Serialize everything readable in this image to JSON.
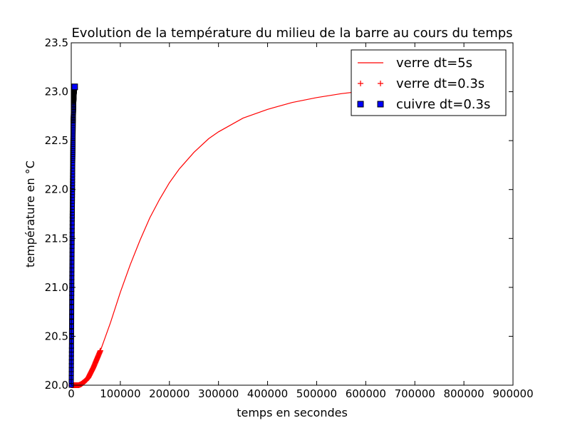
{
  "chart_data": {
    "type": "line",
    "title": "Evolution de la température du milieu de la barre au cours du temps",
    "xlabel": "temps en secondes",
    "ylabel": "température en °C",
    "xlim": [
      0,
      900000
    ],
    "ylim": [
      20.0,
      23.5
    ],
    "x_ticks": [
      "0",
      "100000",
      "200000",
      "300000",
      "400000",
      "500000",
      "600000",
      "700000",
      "800000",
      "900000"
    ],
    "y_ticks": [
      "20.0",
      "20.5",
      "21.0",
      "21.5",
      "22.0",
      "22.5",
      "23.0",
      "23.5"
    ],
    "grid": false,
    "legend_position": "top-right",
    "series": [
      {
        "name": "verre dt=5s",
        "style": "line",
        "color": "#ff0000",
        "x": [
          0,
          10000,
          20000,
          30000,
          40000,
          50000,
          60000,
          70000,
          80000,
          100000,
          120000,
          140000,
          160000,
          180000,
          200000,
          220000,
          250000,
          280000,
          300000,
          350000,
          400000,
          450000,
          500000,
          550000,
          600000,
          650000
        ],
        "y": [
          20.0,
          20.0,
          20.01,
          20.05,
          20.13,
          20.24,
          20.36,
          20.5,
          20.64,
          20.95,
          21.23,
          21.48,
          21.71,
          21.9,
          22.07,
          22.21,
          22.38,
          22.52,
          22.59,
          22.73,
          22.82,
          22.89,
          22.94,
          22.98,
          23.01,
          23.03
        ]
      },
      {
        "name": "verre dt=0.3s",
        "style": "plus",
        "color": "#ff0000",
        "x": [
          0,
          5000,
          10000,
          15000,
          20000,
          25000,
          30000,
          35000,
          40000,
          45000,
          50000,
          55000,
          60000
        ],
        "y": [
          20.0,
          20.0,
          20.0,
          20.0,
          20.01,
          20.03,
          20.05,
          20.08,
          20.13,
          20.18,
          20.24,
          20.3,
          20.36
        ]
      },
      {
        "name": "cuivre dt=0.3s",
        "style": "square",
        "color": "#0000ff",
        "x": [
          0,
          500,
          1000,
          1500,
          2000,
          2500,
          3000,
          3500,
          4000,
          4500,
          5000,
          5500,
          6000,
          6500,
          7000
        ],
        "y": [
          20.0,
          20.4,
          20.9,
          21.3,
          21.7,
          22.0,
          22.3,
          22.5,
          22.7,
          22.8,
          22.9,
          22.95,
          23.0,
          23.03,
          23.05
        ]
      }
    ]
  }
}
